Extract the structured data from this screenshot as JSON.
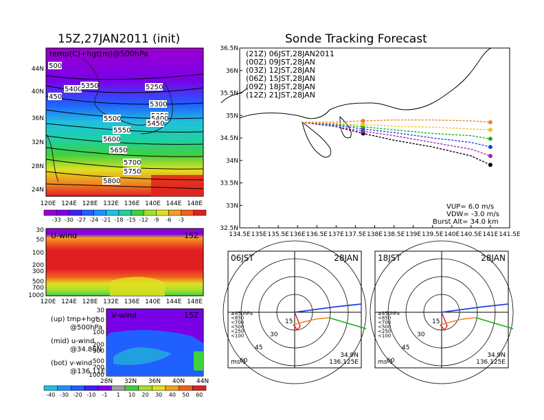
{
  "left": {
    "title": "15Z,27JAN2011 (init)",
    "top_map": {
      "label": "temp(C)+hgt(m)@500hPa",
      "lat_ticks": [
        "44N",
        "40N",
        "36N",
        "32N",
        "28N",
        "24N"
      ],
      "lon_ticks": [
        "120E",
        "124E",
        "128E",
        "132E",
        "136E",
        "140E",
        "144E",
        "148E"
      ],
      "contour_labels": [
        "5400",
        "5350",
        "5250",
        "5300",
        "5500",
        "5350",
        "5400",
        "5450",
        "5550",
        "5600",
        "5650",
        "5700",
        "5750",
        "5800",
        "500",
        "450"
      ],
      "colorbar": [
        "-33",
        "-30",
        "-27",
        "-24",
        "-21",
        "-18",
        "-15",
        "-12",
        "-9",
        "-6",
        "-3"
      ]
    },
    "mid_panel": {
      "label": "U-wind",
      "time": "15Z",
      "p_ticks": [
        "30",
        "50",
        "100",
        "200",
        "300",
        "500",
        "700",
        "1000"
      ],
      "lon_ticks": [
        "120E",
        "124E",
        "128E",
        "132E",
        "136E",
        "140E",
        "144E",
        "148E"
      ]
    },
    "bot_panel": {
      "label": "V-wind",
      "time": "15Z",
      "p_ticks": [
        "30",
        "50",
        "100",
        "200",
        "300",
        "500",
        "700",
        "1000"
      ],
      "lat_ticks": [
        "28N",
        "32N",
        "36N",
        "40N",
        "44N"
      ],
      "colorbar": [
        "-40",
        "-30",
        "-20",
        "-10",
        "-1",
        "1",
        "10",
        "20",
        "30",
        "40",
        "50",
        "60"
      ]
    },
    "notes": {
      "up1": "(up) tmp+hgt",
      "up2": "@500hPa",
      "mid1": "(mid) u-wind",
      "mid2": "@34.86N",
      "bot1": "(bot) v-wind",
      "bot2": "@136.11E"
    }
  },
  "right": {
    "title": "Sonde Tracking Forecast",
    "lat_ticks": [
      "36.5N",
      "36N",
      "35.5N",
      "35N",
      "34.5N",
      "34N",
      "33.5N",
      "33N",
      "32.5N"
    ],
    "lon_ticks": [
      "134.5E",
      "135E",
      "135.5E",
      "136E",
      "136.5E",
      "137E",
      "137.5E",
      "138E",
      "138.5E",
      "139E",
      "139.5E",
      "140E",
      "140.5E",
      "141E",
      "141.5E"
    ],
    "legend": [
      {
        "text": "(21Z)  06JST,28JAN2011",
        "color": "#000000"
      },
      {
        "text": "(00Z)  09JST,28JAN",
        "color": "#a020c0"
      },
      {
        "text": "(03Z)  12JST,28JAN",
        "color": "#2040e0"
      },
      {
        "text": "(06Z)  15JST,28JAN",
        "color": "#10b010"
      },
      {
        "text": "(09Z)  18JST,28JAN",
        "color": "#f0c020"
      },
      {
        "text": "(12Z)  21JST,28JAN",
        "color": "#f08020"
      }
    ],
    "params": {
      "vup": "VUP=  6.0  m/s",
      "vdw": "VDW= -3.0  m/s",
      "burst": "Burst Alt= 34.0 km"
    },
    "hodographs": [
      {
        "left_label": "06JST",
        "right_label": "28JAN"
      },
      {
        "left_label": "18JST",
        "right_label": "28JAN"
      }
    ],
    "hodo_common": {
      "unit": "ms-1",
      "lat": "34.9N",
      "lon": "136.125E",
      "rings": [
        "15",
        "30",
        "45",
        "60"
      ],
      "levels": [
        {
          "text": "≥850hPa",
          "color": "#e02020"
        },
        {
          "text": "<850",
          "color": "#f08020"
        },
        {
          "text": "<700",
          "color": "#e8c020"
        },
        {
          "text": "<500",
          "color": "#10b010"
        },
        {
          "text": "<250",
          "color": "#20c0c0"
        },
        {
          "text": "<100",
          "color": "#2040e0"
        }
      ]
    }
  },
  "chart_data": [
    {
      "type": "line",
      "title": "Sonde Tracking Forecast",
      "xlabel": "",
      "ylabel": "",
      "xlim": [
        134.5,
        141.5
      ],
      "ylim": [
        32.5,
        36.5
      ],
      "series": [
        {
          "name": "(21Z)  06JST,28JAN2011",
          "x": [
            136.1,
            137.0,
            137.7,
            138.5,
            139.5,
            140.5,
            141.0
          ],
          "y": [
            34.85,
            34.75,
            34.6,
            34.45,
            34.3,
            34.1,
            33.9
          ]
        },
        {
          "name": "(00Z)  09JST,28JAN",
          "x": [
            136.1,
            137.0,
            137.7,
            138.5,
            139.5,
            140.5,
            141.0
          ],
          "y": [
            34.85,
            34.75,
            34.65,
            34.55,
            34.4,
            34.25,
            34.1
          ]
        },
        {
          "name": "(03Z)  12JST,28JAN",
          "x": [
            136.1,
            137.0,
            137.7,
            138.5,
            139.5,
            140.5,
            141.0
          ],
          "y": [
            34.85,
            34.78,
            34.7,
            34.62,
            34.5,
            34.4,
            34.3
          ]
        },
        {
          "name": "(06Z)  15JST,28JAN",
          "x": [
            136.1,
            137.0,
            137.7,
            138.5,
            139.5,
            140.5,
            141.0
          ],
          "y": [
            34.85,
            34.8,
            34.75,
            34.68,
            34.6,
            34.55,
            34.48
          ]
        },
        {
          "name": "(09Z)  18JST,28JAN",
          "x": [
            136.1,
            137.0,
            137.7,
            138.5,
            139.5,
            140.5,
            141.0
          ],
          "y": [
            34.85,
            34.82,
            34.8,
            34.76,
            34.74,
            34.7,
            34.68
          ]
        },
        {
          "name": "(12Z)  21JST,28JAN",
          "x": [
            136.1,
            137.0,
            137.7,
            138.5,
            139.5,
            140.5,
            141.0
          ],
          "y": [
            34.85,
            34.85,
            34.88,
            34.9,
            34.9,
            34.88,
            34.85
          ]
        }
      ]
    },
    {
      "type": "heatmap",
      "title": "temp(C)+hgt(m)@500hPa",
      "xlim": [
        120,
        150
      ],
      "ylim": [
        22,
        47
      ],
      "colorbar_levels": [
        -33,
        -30,
        -27,
        -24,
        -21,
        -18,
        -15,
        -12,
        -9,
        -6,
        -3
      ]
    }
  ],
  "colors": {
    "temp_scale": [
      "#9a00d0",
      "#7a00e8",
      "#4020f0",
      "#2060ff",
      "#2090ff",
      "#20c0e0",
      "#20d0a0",
      "#40d040",
      "#a0e030",
      "#e0e020",
      "#f0a020",
      "#f06020",
      "#e02020"
    ],
    "vwind_scale": [
      "#20c0e0",
      "#2090ff",
      "#2060ff",
      "#4020f0",
      "#7a00e8",
      "#a0a0a0",
      "#40d040",
      "#a0e030",
      "#e0e020",
      "#f0a020",
      "#f06020",
      "#e02020"
    ],
    "uwind_bands": [
      "#9a00d0",
      "#7a00e8",
      "#2060ff",
      "#20c0e0",
      "#40d040",
      "#e0e020",
      "#f0a020",
      "#f06020",
      "#e02020"
    ]
  }
}
